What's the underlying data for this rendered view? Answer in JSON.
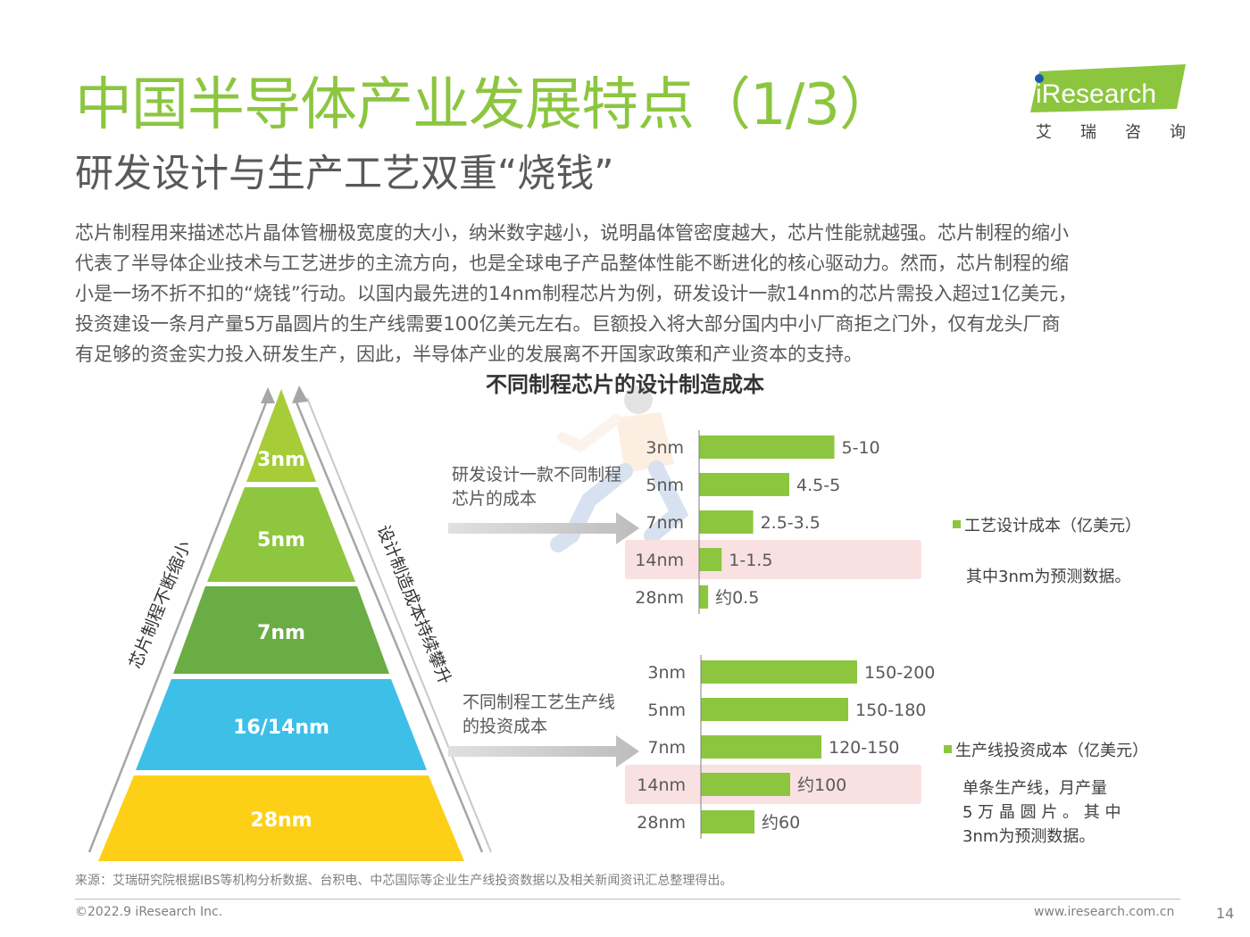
{
  "header": {
    "title": "中国半导体产业发展特点（1/3）",
    "subtitle": "研发设计与生产工艺双重“烧钱”"
  },
  "logo": {
    "brand": "iResearch",
    "cn": [
      "艾",
      "瑞",
      "咨",
      "询"
    ],
    "color": "#8cc63f"
  },
  "body": {
    "lines": [
      "芯片制程用来描述芯片晶体管栅极宽度的大小，纳米数字越小，说明晶体管密度越大，芯片性能就越强。芯片制程的缩小",
      "代表了半导体企业技术与工艺进步的主流方向，也是全球电子产品整体性能不断进化的核心驱动力。然而，芯片制程的缩",
      "小是一场不折不扣的“烧钱”行动。以国内最先进的14nm制程芯片为例，研发设计一款14nm的芯片需投入超过1亿美元，",
      "投资建设一条月产量5万晶圆片的生产线需要100亿美元左右。巨额投入将大部分国内中小厂商拒之门外，仅有龙头厂商",
      "有足够的资金实力投入研发生产，因此，半导体产业的发展离不开国家政策和产业资本的支持。"
    ]
  },
  "pyramid": {
    "tiers": [
      {
        "label": "3nm",
        "color": "#a6cc38"
      },
      {
        "label": "5nm",
        "color": "#8ec63f"
      },
      {
        "label": "7nm",
        "color": "#6aad45"
      },
      {
        "label": "16/14nm",
        "color": "#3dbfe8"
      },
      {
        "label": "28nm",
        "color": "#fdd017"
      }
    ],
    "left_arrow_label": "芯片制程不断缩小",
    "right_arrow_label": "设计制造成本持续攀升"
  },
  "chart_data": [
    {
      "type": "bar",
      "orientation": "horizontal",
      "title": "不同制程芯片的设计制造成本",
      "group_label": [
        "研发设计一款不同制程",
        "芯片的成本"
      ],
      "categories": [
        "3nm",
        "5nm",
        "7nm",
        "14nm",
        "28nm"
      ],
      "values": [
        7.5,
        5.0,
        3.0,
        1.25,
        0.5
      ],
      "value_labels": [
        "5-10",
        "4.5-5",
        "2.5-3.5",
        "1-1.5",
        "约0.5"
      ],
      "highlight": "14nm",
      "legend": "工艺设计成本（亿美元）",
      "note": [
        "其中3nm为预测数据。"
      ],
      "xlim": [
        0,
        10
      ]
    },
    {
      "type": "bar",
      "orientation": "horizontal",
      "group_label": [
        "不同制程工艺生产线",
        "的投资成本"
      ],
      "categories": [
        "3nm",
        "5nm",
        "7nm",
        "14nm",
        "28nm"
      ],
      "values": [
        175,
        165,
        135,
        100,
        60
      ],
      "value_labels": [
        "150-200",
        "150-180",
        "120-150",
        "约100",
        "约60"
      ],
      "highlight": "14nm",
      "legend": "生产线投资成本（亿美元）",
      "note": [
        "单条生产线，月产量",
        "5 万 晶 圆 片 。 其 中",
        "3nm为预测数据。"
      ],
      "xlim": [
        0,
        200
      ]
    }
  ],
  "colors": {
    "bar": "#8cc63f",
    "highlight_bg": "#f9e1e1",
    "arrow": "#d0d0d0"
  },
  "footer": {
    "source": "来源：艾瑞研究院根据IBS等机构分析数据、台积电、中芯国际等企业生产线投资数据以及相关新闻资讯汇总整理得出。",
    "copyright": "©2022.9 iResearch Inc.",
    "website": "www.iresearch.com.cn",
    "page": "14"
  }
}
